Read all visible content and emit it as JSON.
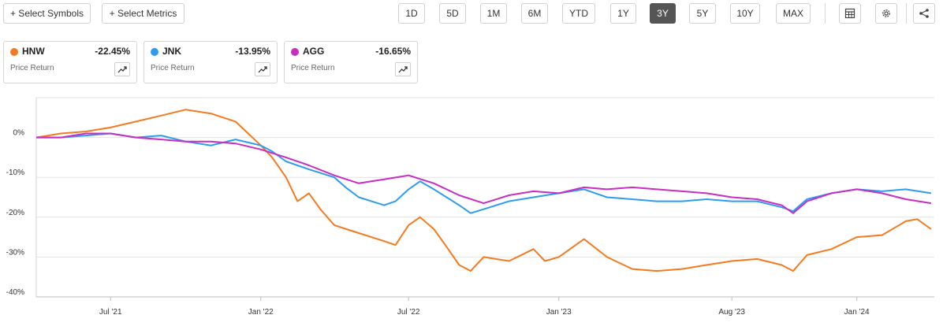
{
  "toolbar": {
    "select_symbols": "+ Select Symbols",
    "select_metrics": "+ Select Metrics",
    "ranges": [
      "1D",
      "5D",
      "1M",
      "6M",
      "YTD",
      "1Y",
      "3Y",
      "5Y",
      "10Y",
      "MAX"
    ],
    "active_range": "3Y",
    "icons": [
      "table-icon",
      "gear-icon",
      "share-icon"
    ]
  },
  "legend_cards": [
    {
      "symbol": "HNW",
      "change": "-22.45%",
      "metric": "Price Return",
      "color": "#f47a1f"
    },
    {
      "symbol": "JNK",
      "change": "-13.95%",
      "metric": "Price Return",
      "color": "#2d9cf0"
    },
    {
      "symbol": "AGG",
      "change": "-16.65%",
      "metric": "Price Return",
      "color": "#c82dc4"
    }
  ],
  "chart_data": {
    "type": "line",
    "title": "",
    "xlabel": "",
    "ylabel": "",
    "y_ticks": [
      0,
      -10,
      -20,
      -30,
      -40
    ],
    "y_tick_labels": [
      "0%",
      "-10%",
      "-20%",
      "-30%",
      "-40%"
    ],
    "ylim": [
      -40,
      10
    ],
    "xlim": [
      "2021-04-01",
      "2024-04-05"
    ],
    "x_ticks": [
      "2021-07-01",
      "2022-01-01",
      "2022-07-01",
      "2023-01-01",
      "2023-08-01",
      "2024-01-01"
    ],
    "x_tick_labels": [
      "Jul '21",
      "Jan '22",
      "Jul '22",
      "Jan '23",
      "Aug '23",
      "Jan '24"
    ],
    "grid": true,
    "series": [
      {
        "name": "HNW",
        "color": "#f47a1f",
        "x": [
          "2021-04-01",
          "2021-05-01",
          "2021-06-01",
          "2021-07-01",
          "2021-08-01",
          "2021-09-01",
          "2021-10-01",
          "2021-11-01",
          "2021-12-01",
          "2022-01-01",
          "2022-01-15",
          "2022-02-01",
          "2022-02-15",
          "2022-03-01",
          "2022-03-15",
          "2022-04-01",
          "2022-05-01",
          "2022-06-01",
          "2022-06-15",
          "2022-07-01",
          "2022-07-15",
          "2022-08-01",
          "2022-08-15",
          "2022-09-01",
          "2022-09-15",
          "2022-10-01",
          "2022-11-01",
          "2022-12-01",
          "2022-12-15",
          "2023-01-01",
          "2023-02-01",
          "2023-03-01",
          "2023-04-01",
          "2023-05-01",
          "2023-06-01",
          "2023-07-01",
          "2023-08-01",
          "2023-09-01",
          "2023-10-01",
          "2023-10-15",
          "2023-11-01",
          "2023-12-01",
          "2024-01-01",
          "2024-02-01",
          "2024-03-01",
          "2024-03-15",
          "2024-04-01"
        ],
        "values": [
          0,
          1,
          1.5,
          2.5,
          4,
          5.5,
          7,
          6,
          4,
          -2,
          -5,
          -10,
          -16,
          -14,
          -18,
          -22,
          -24,
          -26,
          -27,
          -22,
          -20,
          -23,
          -27,
          -32,
          -33.5,
          -30,
          -31,
          -28,
          -31,
          -30,
          -25.5,
          -30,
          -33,
          -33.5,
          -33,
          -32,
          -31,
          -30.5,
          -32,
          -33.5,
          -29.5,
          -28,
          -25,
          -24.5,
          -21,
          -20.5,
          -23
        ]
      },
      {
        "name": "JNK",
        "color": "#2d9cf0",
        "x": [
          "2021-04-01",
          "2021-05-01",
          "2021-06-01",
          "2021-07-01",
          "2021-08-01",
          "2021-09-01",
          "2021-10-01",
          "2021-11-01",
          "2021-12-01",
          "2022-01-01",
          "2022-01-15",
          "2022-02-01",
          "2022-03-01",
          "2022-04-01",
          "2022-04-15",
          "2022-05-01",
          "2022-06-01",
          "2022-06-15",
          "2022-07-01",
          "2022-07-15",
          "2022-08-01",
          "2022-09-01",
          "2022-09-15",
          "2022-10-01",
          "2022-11-01",
          "2022-12-01",
          "2023-01-01",
          "2023-02-01",
          "2023-03-01",
          "2023-04-01",
          "2023-05-01",
          "2023-06-01",
          "2023-07-01",
          "2023-08-01",
          "2023-09-01",
          "2023-10-01",
          "2023-10-15",
          "2023-11-01",
          "2023-12-01",
          "2024-01-01",
          "2024-02-01",
          "2024-03-01",
          "2024-04-01"
        ],
        "values": [
          0,
          0,
          0.5,
          1,
          0,
          0.5,
          -1,
          -2,
          -0.5,
          -2,
          -3.5,
          -6,
          -8,
          -10,
          -12.5,
          -15,
          -17,
          -16,
          -13,
          -11,
          -13,
          -17,
          -19,
          -18,
          -16,
          -15,
          -14,
          -13,
          -15,
          -15.5,
          -16,
          -16,
          -15.5,
          -16,
          -16,
          -17.5,
          -18.5,
          -15.5,
          -14,
          -13,
          -13.5,
          -13,
          -14
        ]
      },
      {
        "name": "AGG",
        "color": "#c82dc4",
        "x": [
          "2021-04-01",
          "2021-05-01",
          "2021-06-01",
          "2021-07-01",
          "2021-08-01",
          "2021-09-01",
          "2021-10-01",
          "2021-11-01",
          "2021-12-01",
          "2022-01-01",
          "2022-02-01",
          "2022-03-01",
          "2022-04-01",
          "2022-05-01",
          "2022-06-01",
          "2022-07-01",
          "2022-08-01",
          "2022-09-01",
          "2022-10-01",
          "2022-11-01",
          "2022-12-01",
          "2023-01-01",
          "2023-02-01",
          "2023-03-01",
          "2023-04-01",
          "2023-05-01",
          "2023-06-01",
          "2023-07-01",
          "2023-08-01",
          "2023-09-01",
          "2023-10-01",
          "2023-10-15",
          "2023-11-01",
          "2023-12-01",
          "2024-01-01",
          "2024-02-01",
          "2024-03-01",
          "2024-04-01"
        ],
        "values": [
          0,
          0,
          1,
          1,
          0,
          -0.5,
          -1,
          -1,
          -1.5,
          -3,
          -5,
          -7,
          -9.5,
          -11.5,
          -10.5,
          -9.5,
          -11.5,
          -14.5,
          -16.5,
          -14.5,
          -13.5,
          -14,
          -12.5,
          -13,
          -12.5,
          -13,
          -13.5,
          -14,
          -15,
          -15.5,
          -17,
          -19,
          -16,
          -14,
          -13,
          -14,
          -15.5,
          -16.5
        ]
      }
    ]
  }
}
